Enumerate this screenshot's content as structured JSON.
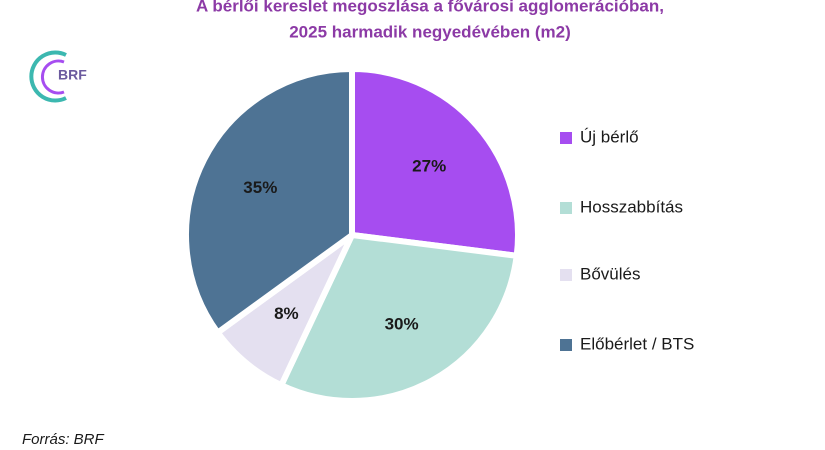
{
  "chart_data": {
    "type": "pie",
    "title": [
      "A bérlői kereslet megoszlása a fővárosi agglomerációban,",
      "2025 harmadik negyedévében  (m2)"
    ],
    "categories": [
      "Új bérlő",
      "Hosszabbítás",
      "Bővülés",
      "Előbérlet / BTS"
    ],
    "values": [
      27,
      30,
      8,
      35
    ],
    "value_labels": [
      "27%",
      "30%",
      "8%",
      "35%"
    ],
    "colors": [
      "#a64df0",
      "#b3ded6",
      "#e4e0f0",
      "#4e7394"
    ],
    "legend": "right",
    "source": "Forrás: BRF",
    "logo": "BRF"
  }
}
